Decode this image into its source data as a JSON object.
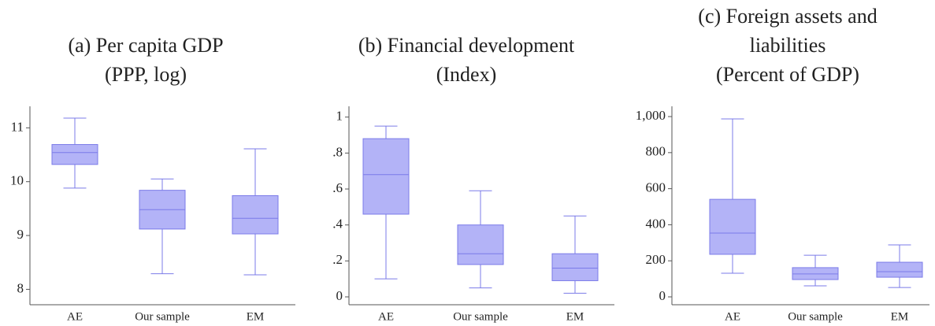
{
  "chart_data": [
    {
      "type": "box",
      "title": [
        "(a) Per capita GDP",
        "(PPP, log)"
      ],
      "categories": [
        "AE",
        "Our sample",
        "EM"
      ],
      "boxes": [
        {
          "min": 9.88,
          "q1": 10.32,
          "median": 10.54,
          "q3": 10.69,
          "max": 11.18
        },
        {
          "min": 8.29,
          "q1": 9.12,
          "median": 9.48,
          "q3": 9.84,
          "max": 10.05
        },
        {
          "min": 8.27,
          "q1": 9.03,
          "median": 9.32,
          "q3": 9.74,
          "max": 10.61
        }
      ],
      "color": "#b3b3f7",
      "edgecolor": "#7b7be8",
      "ylim": [
        7.86,
        11.4
      ],
      "yticks": [
        8,
        9,
        10,
        11
      ]
    },
    {
      "type": "box",
      "title": [
        "(b) Financial development",
        "(Index)"
      ],
      "categories": [
        "AE",
        "Our sample",
        "EM"
      ],
      "boxes": [
        {
          "min": 0.1,
          "q1": 0.46,
          "median": 0.68,
          "q3": 0.88,
          "max": 0.95
        },
        {
          "min": 0.05,
          "q1": 0.18,
          "median": 0.24,
          "q3": 0.4,
          "max": 0.59
        },
        {
          "min": 0.02,
          "q1": 0.09,
          "median": 0.16,
          "q3": 0.24,
          "max": 0.45
        }
      ],
      "color": "#b3b3f7",
      "edgecolor": "#7b7be8",
      "ylim": [
        0,
        1.06
      ],
      "yticks": [
        0,
        {
          "value": 0.2,
          "label": ".2"
        },
        {
          "value": 0.4,
          "label": ".4"
        },
        {
          "value": 0.6,
          "label": ".6"
        },
        {
          "value": 0.8,
          "label": ".8"
        },
        1
      ]
    },
    {
      "type": "box",
      "title": [
        "(c) Foreign assets and",
        "liabilities",
        "(Percent of GDP)"
      ],
      "categories": [
        "AE",
        "Our sample",
        "EM"
      ],
      "boxes": [
        {
          "min": 131,
          "q1": 236,
          "median": 354,
          "q3": 541,
          "max": 987
        },
        {
          "min": 61,
          "q1": 96,
          "median": 127,
          "q3": 162,
          "max": 231
        },
        {
          "min": 52,
          "q1": 109,
          "median": 140,
          "q3": 192,
          "max": 288
        }
      ],
      "color": "#b3b3f7",
      "edgecolor": "#7b7be8",
      "ylim": [
        0,
        1057
      ],
      "yticks": [
        0,
        200,
        400,
        600,
        800,
        {
          "value": 1000,
          "label": "1,000"
        }
      ]
    }
  ]
}
